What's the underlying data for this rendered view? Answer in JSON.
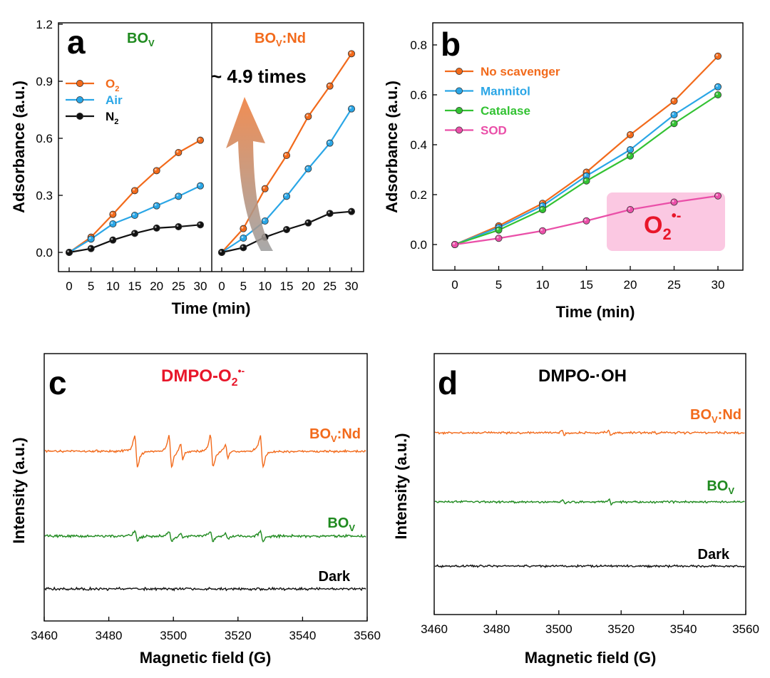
{
  "panels": {
    "a": {
      "letter": "a",
      "left_title": "BO",
      "left_title_sub": "V",
      "right_title": "BO",
      "right_title_sub": "V",
      "right_title_suffix": ":Nd",
      "annotation": "~ 4.9 times"
    },
    "b": {
      "letter": "b",
      "box_label": "O",
      "box_label_sub": "2",
      "box_label_sup": "•-"
    },
    "c": {
      "letter": "c",
      "title": "DMPO-O",
      "title_sub": "2",
      "title_sup": "•-"
    },
    "d": {
      "letter": "d",
      "title": "DMPO-·OH"
    }
  },
  "chart_data": [
    {
      "type": "line",
      "panel": "a",
      "subpanel": "BOV",
      "x": [
        0,
        5,
        10,
        15,
        20,
        25,
        30
      ],
      "series": [
        {
          "name": "O2",
          "color": "#f26a1b",
          "values": [
            0.0,
            0.08,
            0.2,
            0.325,
            0.43,
            0.525,
            0.59
          ]
        },
        {
          "name": "Air",
          "color": "#2aa6e6",
          "values": [
            0.0,
            0.07,
            0.15,
            0.195,
            0.245,
            0.295,
            0.35
          ]
        },
        {
          "name": "N2",
          "color": "#111111",
          "values": [
            0.0,
            0.02,
            0.065,
            0.1,
            0.128,
            0.135,
            0.145
          ]
        }
      ],
      "xlabel": "Time (min)",
      "ylabel": "Adsorbance (a.u.)",
      "ylim": [
        -0.08,
        1.2
      ],
      "yticks": [
        "0.0",
        "0.3",
        "0.6",
        "0.9",
        "1.2"
      ],
      "xticks": [
        "0",
        "5",
        "10",
        "15",
        "20",
        "25",
        "30"
      ],
      "legend": [
        {
          "label": "O",
          "sub": "2",
          "color": "#f26a1b"
        },
        {
          "label": "Air",
          "sub": "",
          "color": "#2aa6e6"
        },
        {
          "label": "N",
          "sub": "2",
          "color": "#111111"
        }
      ],
      "legend_position": "top-left"
    },
    {
      "type": "line",
      "panel": "a",
      "subpanel": "BOV:Nd",
      "x": [
        0,
        5,
        10,
        15,
        20,
        25,
        30
      ],
      "series": [
        {
          "name": "O2",
          "color": "#f26a1b",
          "values": [
            0.0,
            0.125,
            0.335,
            0.51,
            0.715,
            0.875,
            1.045
          ]
        },
        {
          "name": "Air",
          "color": "#2aa6e6",
          "values": [
            0.0,
            0.075,
            0.165,
            0.295,
            0.44,
            0.575,
            0.755
          ]
        },
        {
          "name": "N2",
          "color": "#111111",
          "values": [
            0.0,
            0.025,
            0.08,
            0.12,
            0.155,
            0.205,
            0.215
          ]
        }
      ],
      "ylim": [
        -0.08,
        1.2
      ],
      "xticks": [
        "0",
        "5",
        "10",
        "15",
        "20",
        "25",
        "30"
      ]
    },
    {
      "type": "line",
      "panel": "b",
      "x": [
        0,
        5,
        10,
        15,
        20,
        25,
        30
      ],
      "series": [
        {
          "name": "No scavenger",
          "color": "#f26a1b",
          "values": [
            0.0,
            0.075,
            0.165,
            0.29,
            0.44,
            0.575,
            0.755
          ]
        },
        {
          "name": "Mannitol",
          "color": "#2aa6e6",
          "values": [
            0.0,
            0.068,
            0.155,
            0.275,
            0.38,
            0.52,
            0.632
          ]
        },
        {
          "name": "Catalase",
          "color": "#33c233",
          "values": [
            0.0,
            0.058,
            0.14,
            0.255,
            0.355,
            0.485,
            0.6
          ]
        },
        {
          "name": "SOD",
          "color": "#ea4fa8",
          "values": [
            0.0,
            0.025,
            0.055,
            0.095,
            0.14,
            0.17,
            0.195
          ]
        }
      ],
      "xlabel": "Time (min)",
      "ylabel": "Adsorbance (a.u.)",
      "ylim": [
        -0.1,
        0.9
      ],
      "yticks": [
        "0.0",
        "0.2",
        "0.4",
        "0.6",
        "0.8"
      ],
      "xticks": [
        "0",
        "5",
        "10",
        "15",
        "20",
        "25",
        "30"
      ],
      "legend_position": "top-left"
    },
    {
      "type": "line",
      "panel": "c",
      "series": [
        {
          "name": "BOV:Nd",
          "label": "BO",
          "label_sub": "V",
          "label_suffix": ":Nd",
          "color": "#f26a1b"
        },
        {
          "name": "BOV",
          "label": "BO",
          "label_sub": "V",
          "label_suffix": "",
          "color": "#1f8a1f"
        },
        {
          "name": "Dark",
          "label": "Dark",
          "label_sub": "",
          "label_suffix": "",
          "color": "#111111"
        }
      ],
      "xlabel": "Magnetic field (G)",
      "ylabel": "Intensity (a.u.)",
      "xlim": [
        3460,
        3560
      ],
      "xticks": [
        "3460",
        "3480",
        "3500",
        "3520",
        "3540",
        "3560"
      ]
    },
    {
      "type": "line",
      "panel": "d",
      "series": [
        {
          "name": "BOV:Nd",
          "label": "BO",
          "label_sub": "V",
          "label_suffix": ":Nd",
          "color": "#f26a1b"
        },
        {
          "name": "BOV",
          "label": "BO",
          "label_sub": "V",
          "label_suffix": "",
          "color": "#1f8a1f"
        },
        {
          "name": "Dark",
          "label": "Dark",
          "label_sub": "",
          "label_suffix": "",
          "color": "#111111"
        }
      ],
      "xlabel": "Magnetic field (G)",
      "ylabel": "Intensity (a.u.)",
      "xlim": [
        3460,
        3560
      ],
      "xticks": [
        "3460",
        "3480",
        "3500",
        "3520",
        "3540",
        "3560"
      ]
    }
  ]
}
